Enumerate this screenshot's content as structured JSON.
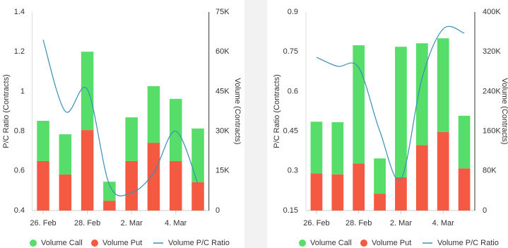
{
  "chart_data": [
    {
      "type": "bar",
      "stacked": true,
      "categories": [
        "26. Feb",
        null,
        "28. Feb",
        null,
        "2. Mar",
        null,
        "4. Mar",
        null
      ],
      "ylabel": "P/C Ratio (Contracts)",
      "y2label": "Volume (Contracts)",
      "ylim": [
        0.4,
        1.4
      ],
      "yticks": [
        0.4,
        0.6,
        0.8,
        1,
        1.2,
        1.4
      ],
      "y2lim": [
        0,
        75000
      ],
      "y2ticks": [
        {
          "value": 0,
          "label": "0"
        },
        {
          "value": 15000,
          "label": "15K"
        },
        {
          "value": 30000,
          "label": "30K"
        },
        {
          "value": 45000,
          "label": "45K"
        },
        {
          "value": 60000,
          "label": "60K"
        },
        {
          "value": 75000,
          "label": "75K"
        }
      ],
      "series": [
        {
          "name": "Volume Call",
          "color": "#56dd6a",
          "axis": "y2",
          "values": [
            15200,
            15200,
            29600,
            7200,
            16500,
            21400,
            23500,
            20300
          ]
        },
        {
          "name": "Volume Put",
          "color": "#f45a42",
          "axis": "y2",
          "values": [
            18700,
            13600,
            30400,
            3700,
            18700,
            25600,
            18700,
            10700
          ]
        },
        {
          "name": "Volume P/C Ratio",
          "color": "#3a8fb7",
          "type": "line",
          "values": [
            1.26,
            0.9,
            1.01,
            0.53,
            0.49,
            0.59,
            0.8,
            0.535
          ]
        }
      ]
    },
    {
      "type": "bar",
      "stacked": true,
      "categories": [
        "26. Feb",
        null,
        "28. Feb",
        null,
        "2. Mar",
        null,
        "4. Mar",
        null
      ],
      "ylabel": "P/C Ratio (Contracts)",
      "y2label": "Volume (Contracts)",
      "ylim": [
        0.15,
        0.9
      ],
      "yticks": [
        0.15,
        0.3,
        0.45,
        0.6,
        0.75,
        0.9
      ],
      "y2lim": [
        0,
        400000
      ],
      "y2ticks": [
        {
          "value": 0,
          "label": "0"
        },
        {
          "value": 80000,
          "label": "80K"
        },
        {
          "value": 160000,
          "label": "160K"
        },
        {
          "value": 240000,
          "label": "240K"
        },
        {
          "value": 320000,
          "label": "320K"
        },
        {
          "value": 400000,
          "label": "400K"
        }
      ],
      "series": [
        {
          "name": "Volume Call",
          "color": "#56dd6a",
          "axis": "y2",
          "values": [
            104000,
            105000,
            238000,
            71000,
            263000,
            205000,
            189000,
            106000
          ]
        },
        {
          "name": "Volume Put",
          "color": "#f45a42",
          "axis": "y2",
          "values": [
            75000,
            73000,
            95000,
            34000,
            67000,
            132000,
            158000,
            85000
          ]
        },
        {
          "name": "Volume P/C Ratio",
          "color": "#3a8fb7",
          "type": "line",
          "values": [
            0.729,
            0.695,
            0.69,
            0.45,
            0.27,
            0.65,
            0.836,
            0.82
          ]
        }
      ]
    }
  ]
}
